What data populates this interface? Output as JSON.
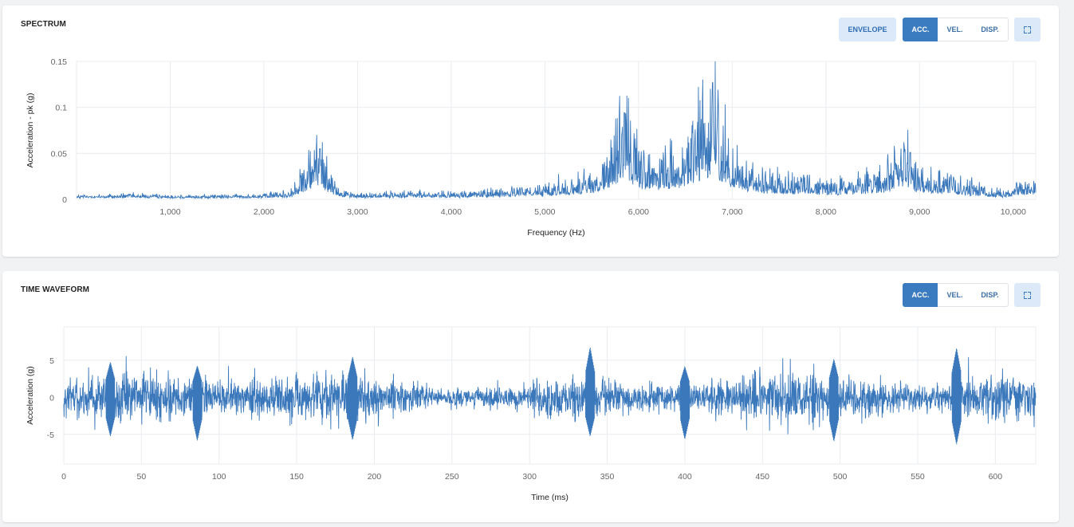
{
  "colors": {
    "series": "#3a78bb",
    "grid": "#e9ecef",
    "axis_text": "#666666",
    "label_text": "#222222",
    "active_button": "#3b7bbf",
    "light_button": "#dbe9f8"
  },
  "spectrum": {
    "title": "SPECTRUM",
    "buttons": {
      "envelope": "ENVELOPE",
      "acc": "ACC.",
      "vel": "VEL.",
      "disp": "DISP.",
      "active": "acc"
    },
    "expand_icon": "fullscreen-icon"
  },
  "waveform": {
    "title": "TIME WAVEFORM",
    "buttons": {
      "acc": "ACC.",
      "vel": "VEL.",
      "disp": "DISP.",
      "active": "acc"
    },
    "expand_icon": "fullscreen-icon"
  },
  "chart_data": [
    {
      "id": "spectrum",
      "type": "line",
      "title": "SPECTRUM",
      "xlabel": "Frequency (Hz)",
      "ylabel": "Acceleration - pk (g)",
      "xlim": [
        0,
        10240
      ],
      "ylim": [
        0,
        0.15
      ],
      "xticks": [
        1000,
        2000,
        3000,
        4000,
        5000,
        6000,
        7000,
        8000,
        9000,
        10000
      ],
      "xtick_labels": [
        "1,000",
        "2,000",
        "3,000",
        "4,000",
        "5,000",
        "6,000",
        "7,000",
        "8,000",
        "9,000",
        "10,000"
      ],
      "yticks": [
        0,
        0.05,
        0.1,
        0.15
      ],
      "ytick_labels": [
        "0",
        "0.05",
        "0.1",
        "0.15"
      ],
      "grid": true,
      "series_description_points": {
        "x": [
          0,
          500,
          1000,
          1500,
          2000,
          2300,
          2450,
          2550,
          2600,
          2700,
          2800,
          3000,
          3500,
          4000,
          4500,
          5000,
          5300,
          5600,
          5750,
          5850,
          5950,
          6100,
          6300,
          6500,
          6650,
          6750,
          6790,
          6850,
          6950,
          7100,
          7300,
          7600,
          7900,
          8200,
          8500,
          8700,
          8850,
          8950,
          9200,
          9600,
          9900,
          10050,
          10240
        ],
        "y": [
          0.003,
          0.004,
          0.003,
          0.003,
          0.004,
          0.008,
          0.032,
          0.05,
          0.055,
          0.025,
          0.01,
          0.004,
          0.006,
          0.005,
          0.008,
          0.012,
          0.018,
          0.025,
          0.06,
          0.095,
          0.05,
          0.035,
          0.04,
          0.05,
          0.075,
          0.09,
          0.127,
          0.085,
          0.055,
          0.035,
          0.025,
          0.02,
          0.018,
          0.015,
          0.022,
          0.03,
          0.05,
          0.03,
          0.022,
          0.012,
          0.006,
          0.012,
          0.015
        ]
      }
    },
    {
      "id": "waveform",
      "type": "line",
      "title": "TIME WAVEFORM",
      "xlabel": "Time (ms)",
      "ylabel": "Acceleration (g)",
      "xlim": [
        0,
        626
      ],
      "ylim": [
        -9,
        9.5
      ],
      "xticks": [
        0,
        50,
        100,
        150,
        200,
        250,
        300,
        350,
        400,
        450,
        500,
        550,
        600
      ],
      "xtick_labels": [
        "0",
        "50",
        "100",
        "150",
        "200",
        "250",
        "300",
        "350",
        "400",
        "450",
        "500",
        "550",
        "600"
      ],
      "yticks": [
        -5,
        0,
        5
      ],
      "ytick_labels": [
        "-5",
        "0",
        "5"
      ],
      "grid": true,
      "noise_rms": 1.4,
      "peaks": [
        {
          "t": 30,
          "max": 4.8,
          "min": -5.3
        },
        {
          "t": 86,
          "max": 4.3,
          "min": -5.9
        },
        {
          "t": 186,
          "max": 5.5,
          "min": -5.8
        },
        {
          "t": 339,
          "max": 6.8,
          "min": -5.3
        },
        {
          "t": 400,
          "max": 4.2,
          "min": -5.7
        },
        {
          "t": 496,
          "max": 5.2,
          "min": -6.0
        },
        {
          "t": 575,
          "max": 6.7,
          "min": -6.4
        }
      ]
    }
  ]
}
